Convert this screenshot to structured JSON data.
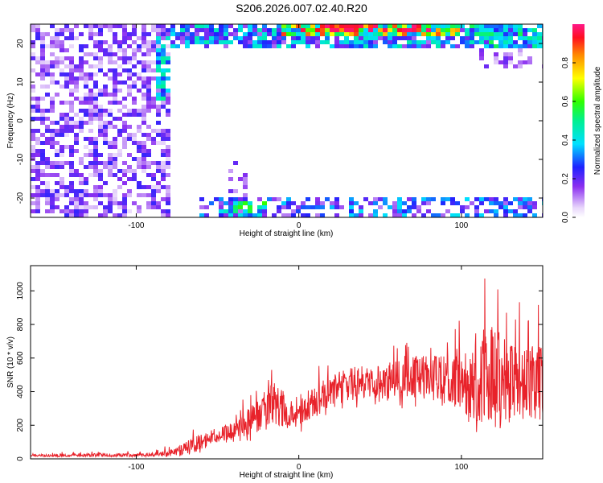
{
  "title": "S206.2026.007.02.40.R20",
  "colors": {
    "series": "#e8222a",
    "text": "#000000"
  },
  "chart_data": [
    {
      "type": "heatmap",
      "xlabel": "Height of straight line (km)",
      "ylabel": "Frequency (Hz)",
      "xlim": [
        -165,
        150
      ],
      "ylim": [
        -25,
        25
      ],
      "xticks": [
        -100,
        0,
        100
      ],
      "xtick_labels": [
        "-100",
        "0",
        "100"
      ],
      "yticks": [
        -20,
        -10,
        0,
        10,
        20
      ],
      "ytick_labels": [
        "-20",
        "-10",
        "0",
        "10",
        "20"
      ],
      "colorbar": {
        "label": "Normalized spectral amplitude",
        "range": [
          0,
          1
        ],
        "ticks": [
          0,
          0.2,
          0.4,
          0.6,
          0.8
        ],
        "tick_labels": [
          "0.0",
          "0.2",
          "0.4",
          "0.6",
          "0.8"
        ],
        "colormap": "rainbow (white-violet-blue-cyan-green-yellow-red-magenta)"
      },
      "features": [
        {
          "region": "broadband noise",
          "x": [
            -165,
            -78
          ],
          "y": [
            -25,
            25
          ],
          "amplitude": [
            0.05,
            0.25
          ]
        },
        {
          "region": "upper edge band",
          "x": [
            -80,
            150
          ],
          "y": [
            18,
            25
          ],
          "amplitude": [
            0.1,
            0.95
          ]
        },
        {
          "region": "lower edge band",
          "x": [
            -60,
            150
          ],
          "y": [
            -25,
            -18
          ],
          "amplitude": [
            0.1,
            0.6
          ]
        },
        {
          "region": "transition ridge",
          "x": [
            -85,
            -75
          ],
          "y": [
            5,
            22
          ],
          "amplitude": [
            0.3,
            0.5
          ]
        }
      ]
    },
    {
      "type": "line",
      "xlabel": "Height of straight line (km)",
      "ylabel": "SNR (10 * v/v)",
      "xlim": [
        -165,
        150
      ],
      "ylim": [
        0,
        1150
      ],
      "xticks": [
        -100,
        0,
        100
      ],
      "xtick_labels": [
        "-100",
        "0",
        "100"
      ],
      "yticks": [
        0,
        200,
        400,
        600,
        800,
        1000
      ],
      "ytick_labels": [
        "0",
        "200",
        "400",
        "600",
        "800",
        "1000"
      ],
      "series": [
        {
          "color": "#e8222a",
          "x": [
            -165,
            -150,
            -130,
            -110,
            -90,
            -80,
            -70,
            -60,
            -50,
            -40,
            -30,
            -20,
            -15,
            -10,
            -5,
            0,
            10,
            20,
            30,
            40,
            50,
            60,
            70,
            80,
            90,
            100,
            110,
            120,
            130,
            140,
            150
          ],
          "y": [
            20,
            20,
            22,
            22,
            25,
            30,
            60,
            100,
            140,
            170,
            200,
            300,
            330,
            300,
            250,
            290,
            340,
            400,
            440,
            460,
            460,
            480,
            500,
            500,
            470,
            480,
            500,
            480,
            460,
            450,
            450
          ],
          "max": [
            30,
            40,
            45,
            45,
            55,
            80,
            160,
            200,
            180,
            250,
            440,
            500,
            560,
            520,
            350,
            480,
            540,
            600,
            650,
            620,
            620,
            700,
            720,
            680,
            740,
            850,
            1120,
            1150,
            1000,
            900,
            1000
          ],
          "min": [
            12,
            10,
            12,
            12,
            14,
            14,
            20,
            30,
            50,
            60,
            80,
            120,
            150,
            140,
            120,
            150,
            220,
            260,
            300,
            300,
            280,
            300,
            300,
            300,
            250,
            200,
            150,
            100,
            150,
            200,
            200
          ]
        }
      ],
      "points": 1300
    }
  ]
}
